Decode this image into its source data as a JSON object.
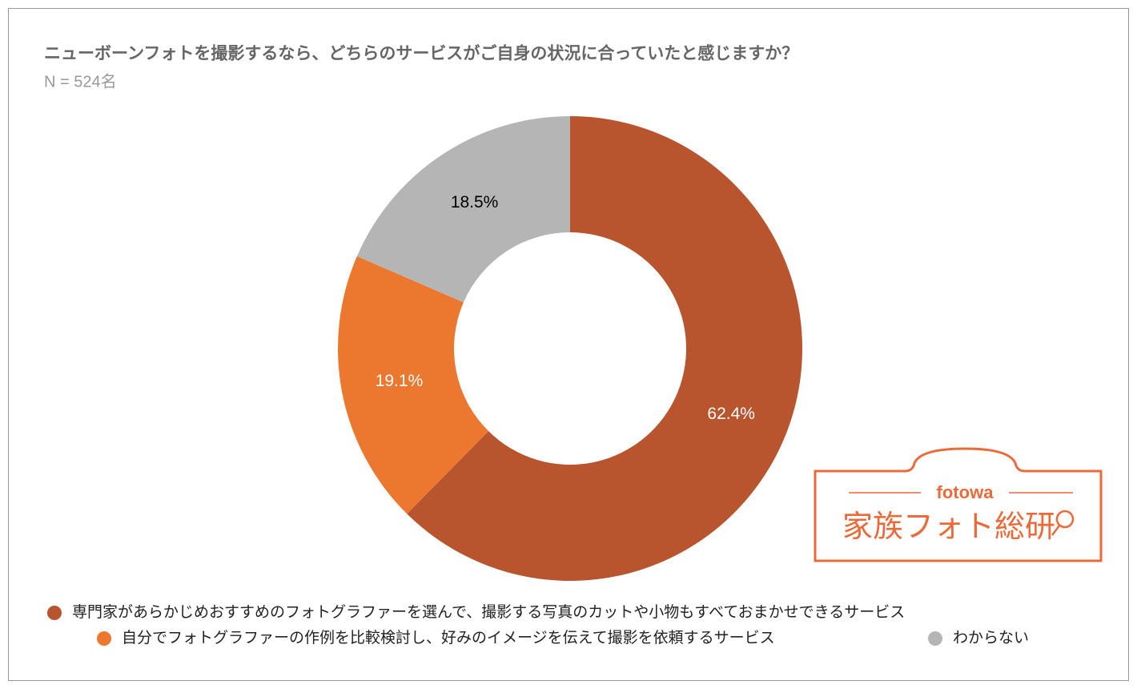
{
  "chart_data": {
    "type": "pie",
    "title": "ニューボーンフォトを撮影するなら、どちらのサービスがご自身の状況に合っていたと感じますか？",
    "subtitle": "N = 524名",
    "categories": [
      "専門家があらかじめおすすめのフォトグラファーを選んで、撮影する写真のカットや小物もすべておまかせできるサービス",
      "自分でフォトグラファーの作例を比較検討し、好みのイメージを伝えて撮影を依頼するサービス",
      "わからない"
    ],
    "values": [
      62.4,
      19.1,
      18.5
    ],
    "value_labels": [
      "62.4%",
      "19.1%",
      "18.5%"
    ],
    "colors": [
      "#b8552e",
      "#ec772f",
      "#b5b5b5"
    ]
  },
  "logo": {
    "brand": "fotowa",
    "name": "家族フォト総研"
  }
}
